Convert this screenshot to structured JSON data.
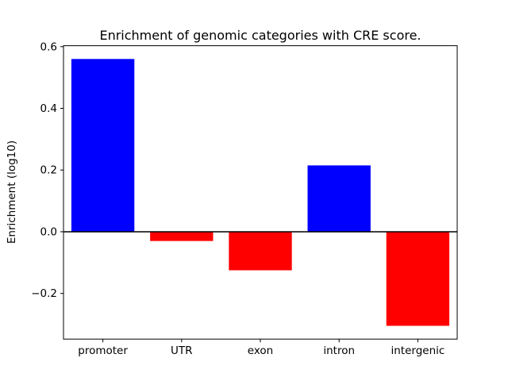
{
  "chart_data": {
    "type": "bar",
    "title": "Enrichment of genomic categories with CRE score.",
    "ylabel": "Enrichment (log10)",
    "xlabel": "",
    "categories": [
      "promoter",
      "UTR",
      "exon",
      "intron",
      "intergenic"
    ],
    "values": [
      0.56,
      -0.03,
      -0.125,
      0.215,
      -0.305
    ],
    "bar_colors": [
      "#0000ff",
      "#ff0000",
      "#ff0000",
      "#0000ff",
      "#ff0000"
    ],
    "positive_color": "#0000ff",
    "negative_color": "#ff0000",
    "ylim": [
      -0.348,
      0.603
    ],
    "yticks": [
      -0.2,
      0.0,
      0.2,
      0.4,
      0.6
    ],
    "ytick_labels": [
      "−0.2",
      "0.0",
      "0.2",
      "0.4",
      "0.6"
    ],
    "zero_line": true,
    "grid": false,
    "legend": "none",
    "bar_width_fraction": 0.8,
    "axis_color": "#000000",
    "background_color": "#ffffff"
  }
}
